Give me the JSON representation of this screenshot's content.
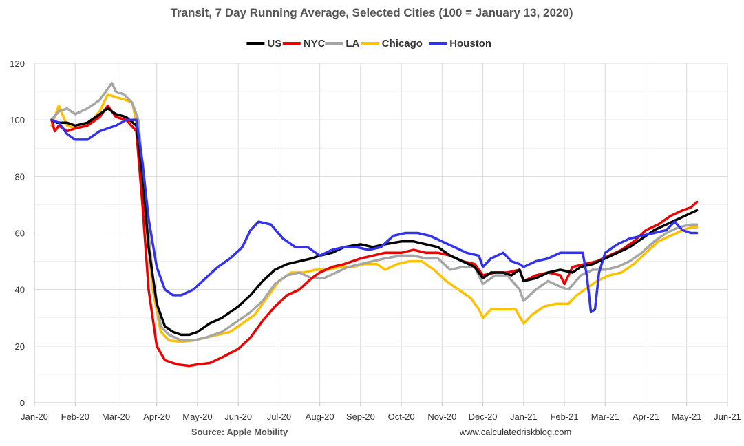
{
  "chart_data": {
    "type": "line",
    "title": "Transit, 7 Day Running Average, Selected Cities (100 = January 13, 2020)",
    "source": "Source: Apple Mobility",
    "website": "www.calculatedriskblog.com",
    "ylim": [
      0,
      120
    ],
    "yticks": [
      0,
      20,
      40,
      60,
      80,
      100,
      120
    ],
    "xlim": [
      0,
      17
    ],
    "xticks": [
      "Jan-20",
      "Feb-20",
      "Mar-20",
      "Apr-20",
      "May-20",
      "Jun-20",
      "Jul-20",
      "Aug-20",
      "Sep-20",
      "Oct-20",
      "Nov-20",
      "Dec-20",
      "Jan-21",
      "Feb-21",
      "Mar-21",
      "Apr-21",
      "May-21",
      "Jun-21"
    ],
    "x_unit": "months since Jan-20",
    "grid": true,
    "legend_position": "top",
    "series": [
      {
        "name": "US",
        "color": "#000000",
        "points": [
          [
            0.42,
            100
          ],
          [
            0.55,
            99
          ],
          [
            0.8,
            99
          ],
          [
            1.0,
            98
          ],
          [
            1.3,
            99
          ],
          [
            1.6,
            102
          ],
          [
            1.8,
            104
          ],
          [
            2.0,
            102
          ],
          [
            2.25,
            101
          ],
          [
            2.5,
            98
          ],
          [
            2.65,
            80
          ],
          [
            2.8,
            55
          ],
          [
            3.0,
            35
          ],
          [
            3.2,
            27
          ],
          [
            3.4,
            25
          ],
          [
            3.6,
            24
          ],
          [
            3.8,
            24
          ],
          [
            4.0,
            25
          ],
          [
            4.3,
            28
          ],
          [
            4.6,
            30
          ],
          [
            5.0,
            34
          ],
          [
            5.3,
            38
          ],
          [
            5.6,
            43
          ],
          [
            5.9,
            47
          ],
          [
            6.2,
            49
          ],
          [
            6.5,
            50
          ],
          [
            6.8,
            51
          ],
          [
            7.0,
            52
          ],
          [
            7.3,
            53
          ],
          [
            7.6,
            55
          ],
          [
            8.0,
            56
          ],
          [
            8.3,
            55
          ],
          [
            8.6,
            56
          ],
          [
            9.0,
            57
          ],
          [
            9.3,
            57
          ],
          [
            9.6,
            56
          ],
          [
            9.9,
            55
          ],
          [
            10.2,
            52
          ],
          [
            10.5,
            50
          ],
          [
            10.8,
            48
          ],
          [
            11.0,
            44
          ],
          [
            11.2,
            46
          ],
          [
            11.5,
            46
          ],
          [
            11.7,
            45
          ],
          [
            11.9,
            47
          ],
          [
            12.0,
            43
          ],
          [
            12.3,
            44
          ],
          [
            12.6,
            46
          ],
          [
            12.9,
            47
          ],
          [
            13.2,
            46
          ],
          [
            13.4,
            48
          ],
          [
            13.7,
            49
          ],
          [
            14.0,
            51
          ],
          [
            14.3,
            53
          ],
          [
            14.6,
            55
          ],
          [
            14.9,
            58
          ],
          [
            15.2,
            61
          ],
          [
            15.5,
            63
          ],
          [
            15.8,
            65
          ],
          [
            16.1,
            67
          ],
          [
            16.25,
            68
          ]
        ]
      },
      {
        "name": "NYC",
        "color": "#ee0000",
        "points": [
          [
            0.42,
            100
          ],
          [
            0.5,
            96
          ],
          [
            0.6,
            98
          ],
          [
            0.8,
            96
          ],
          [
            1.0,
            97
          ],
          [
            1.3,
            98
          ],
          [
            1.6,
            101
          ],
          [
            1.8,
            105
          ],
          [
            2.0,
            101
          ],
          [
            2.25,
            100
          ],
          [
            2.5,
            96
          ],
          [
            2.65,
            70
          ],
          [
            2.8,
            40
          ],
          [
            3.0,
            20
          ],
          [
            3.2,
            15
          ],
          [
            3.5,
            13.5
          ],
          [
            3.8,
            13
          ],
          [
            4.0,
            13.5
          ],
          [
            4.3,
            14
          ],
          [
            4.6,
            16
          ],
          [
            5.0,
            19
          ],
          [
            5.3,
            23
          ],
          [
            5.6,
            29
          ],
          [
            5.9,
            34
          ],
          [
            6.2,
            38
          ],
          [
            6.5,
            40
          ],
          [
            6.8,
            44
          ],
          [
            7.0,
            46
          ],
          [
            7.3,
            48
          ],
          [
            7.6,
            49
          ],
          [
            8.0,
            51
          ],
          [
            8.3,
            52
          ],
          [
            8.6,
            53
          ],
          [
            9.0,
            53
          ],
          [
            9.3,
            54
          ],
          [
            9.6,
            53
          ],
          [
            9.9,
            53
          ],
          [
            10.2,
            52
          ],
          [
            10.5,
            50
          ],
          [
            10.8,
            49
          ],
          [
            11.0,
            45
          ],
          [
            11.3,
            46
          ],
          [
            11.6,
            46
          ],
          [
            11.9,
            47
          ],
          [
            12.0,
            43
          ],
          [
            12.3,
            45
          ],
          [
            12.6,
            46
          ],
          [
            12.9,
            45
          ],
          [
            13.0,
            42
          ],
          [
            13.2,
            48
          ],
          [
            13.5,
            49
          ],
          [
            13.8,
            50
          ],
          [
            14.1,
            52
          ],
          [
            14.4,
            54
          ],
          [
            14.7,
            57
          ],
          [
            15.0,
            61
          ],
          [
            15.3,
            63
          ],
          [
            15.6,
            66
          ],
          [
            15.9,
            68
          ],
          [
            16.1,
            69
          ],
          [
            16.25,
            71
          ]
        ]
      },
      {
        "name": "LA",
        "color": "#a6a6a6",
        "points": [
          [
            0.42,
            100
          ],
          [
            0.6,
            103
          ],
          [
            0.8,
            104
          ],
          [
            1.0,
            102
          ],
          [
            1.3,
            104
          ],
          [
            1.6,
            107
          ],
          [
            1.8,
            111
          ],
          [
            1.9,
            113
          ],
          [
            2.0,
            110
          ],
          [
            2.2,
            109
          ],
          [
            2.4,
            106
          ],
          [
            2.55,
            100
          ],
          [
            2.7,
            75
          ],
          [
            2.9,
            45
          ],
          [
            3.1,
            27
          ],
          [
            3.3,
            24
          ],
          [
            3.6,
            22
          ],
          [
            3.9,
            22
          ],
          [
            4.2,
            23
          ],
          [
            4.6,
            25
          ],
          [
            5.0,
            29
          ],
          [
            5.3,
            32
          ],
          [
            5.6,
            36
          ],
          [
            5.9,
            42
          ],
          [
            6.2,
            45
          ],
          [
            6.5,
            46
          ],
          [
            6.8,
            44
          ],
          [
            7.1,
            44
          ],
          [
            7.4,
            46
          ],
          [
            7.7,
            48
          ],
          [
            8.0,
            49
          ],
          [
            8.3,
            50
          ],
          [
            8.6,
            51
          ],
          [
            9.0,
            52
          ],
          [
            9.3,
            52
          ],
          [
            9.6,
            51
          ],
          [
            9.9,
            51
          ],
          [
            10.2,
            47
          ],
          [
            10.5,
            48
          ],
          [
            10.8,
            48
          ],
          [
            11.0,
            42
          ],
          [
            11.3,
            45
          ],
          [
            11.6,
            45
          ],
          [
            11.9,
            40
          ],
          [
            12.0,
            36
          ],
          [
            12.3,
            40
          ],
          [
            12.6,
            43
          ],
          [
            12.9,
            41
          ],
          [
            13.1,
            40
          ],
          [
            13.4,
            45
          ],
          [
            13.7,
            47
          ],
          [
            14.0,
            47
          ],
          [
            14.3,
            48
          ],
          [
            14.6,
            50
          ],
          [
            14.9,
            53
          ],
          [
            15.2,
            57
          ],
          [
            15.5,
            60
          ],
          [
            15.8,
            62
          ],
          [
            16.1,
            63
          ],
          [
            16.25,
            63
          ]
        ]
      },
      {
        "name": "Chicago",
        "color": "#ffc000",
        "points": [
          [
            0.42,
            98
          ],
          [
            0.6,
            105
          ],
          [
            0.8,
            98
          ],
          [
            1.0,
            97
          ],
          [
            1.3,
            98
          ],
          [
            1.6,
            103
          ],
          [
            1.8,
            109
          ],
          [
            2.0,
            108
          ],
          [
            2.25,
            107
          ],
          [
            2.4,
            106
          ],
          [
            2.55,
            96
          ],
          [
            2.7,
            70
          ],
          [
            2.9,
            40
          ],
          [
            3.1,
            25
          ],
          [
            3.3,
            22
          ],
          [
            3.6,
            21.5
          ],
          [
            3.9,
            22
          ],
          [
            4.2,
            23
          ],
          [
            4.5,
            24
          ],
          [
            4.8,
            25
          ],
          [
            5.1,
            28
          ],
          [
            5.4,
            31
          ],
          [
            5.7,
            37
          ],
          [
            6.0,
            43
          ],
          [
            6.3,
            46
          ],
          [
            6.6,
            46
          ],
          [
            6.9,
            47
          ],
          [
            7.2,
            47
          ],
          [
            7.5,
            48
          ],
          [
            7.8,
            48
          ],
          [
            8.1,
            49
          ],
          [
            8.4,
            49
          ],
          [
            8.6,
            47
          ],
          [
            8.9,
            49
          ],
          [
            9.2,
            50
          ],
          [
            9.5,
            50
          ],
          [
            9.8,
            47
          ],
          [
            10.1,
            43
          ],
          [
            10.4,
            40
          ],
          [
            10.7,
            37
          ],
          [
            10.9,
            33
          ],
          [
            11.0,
            30
          ],
          [
            11.2,
            33
          ],
          [
            11.5,
            33
          ],
          [
            11.8,
            33
          ],
          [
            12.0,
            28
          ],
          [
            12.2,
            31
          ],
          [
            12.5,
            34
          ],
          [
            12.8,
            35
          ],
          [
            13.1,
            35
          ],
          [
            13.3,
            38
          ],
          [
            13.5,
            40
          ],
          [
            13.8,
            43
          ],
          [
            14.1,
            45
          ],
          [
            14.4,
            46
          ],
          [
            14.7,
            49
          ],
          [
            15.0,
            53
          ],
          [
            15.3,
            57
          ],
          [
            15.6,
            59
          ],
          [
            15.9,
            61
          ],
          [
            16.1,
            62
          ],
          [
            16.25,
            62
          ]
        ]
      },
      {
        "name": "Houston",
        "color": "#3333ee",
        "points": [
          [
            0.42,
            100
          ],
          [
            0.6,
            99
          ],
          [
            0.8,
            95
          ],
          [
            1.0,
            93
          ],
          [
            1.3,
            93
          ],
          [
            1.6,
            96
          ],
          [
            1.8,
            97
          ],
          [
            2.0,
            98
          ],
          [
            2.25,
            100
          ],
          [
            2.5,
            100
          ],
          [
            2.65,
            85
          ],
          [
            2.8,
            65
          ],
          [
            3.0,
            48
          ],
          [
            3.2,
            40
          ],
          [
            3.4,
            38
          ],
          [
            3.6,
            38
          ],
          [
            3.9,
            40
          ],
          [
            4.2,
            44
          ],
          [
            4.5,
            48
          ],
          [
            4.8,
            51
          ],
          [
            5.1,
            55
          ],
          [
            5.3,
            61
          ],
          [
            5.5,
            64
          ],
          [
            5.8,
            63
          ],
          [
            6.1,
            58
          ],
          [
            6.4,
            55
          ],
          [
            6.7,
            55
          ],
          [
            7.0,
            52
          ],
          [
            7.3,
            54
          ],
          [
            7.6,
            55
          ],
          [
            7.9,
            55
          ],
          [
            8.2,
            54
          ],
          [
            8.5,
            55
          ],
          [
            8.8,
            59
          ],
          [
            9.1,
            60
          ],
          [
            9.4,
            60
          ],
          [
            9.7,
            59
          ],
          [
            10.0,
            57
          ],
          [
            10.3,
            55
          ],
          [
            10.6,
            53
          ],
          [
            10.9,
            52
          ],
          [
            11.0,
            48
          ],
          [
            11.2,
            51
          ],
          [
            11.5,
            53
          ],
          [
            11.7,
            50
          ],
          [
            11.9,
            49
          ],
          [
            12.0,
            48
          ],
          [
            12.3,
            50
          ],
          [
            12.6,
            51
          ],
          [
            12.9,
            53
          ],
          [
            13.2,
            53
          ],
          [
            13.45,
            53
          ],
          [
            13.55,
            45
          ],
          [
            13.65,
            32
          ],
          [
            13.75,
            33
          ],
          [
            13.85,
            46
          ],
          [
            14.0,
            53
          ],
          [
            14.3,
            56
          ],
          [
            14.6,
            58
          ],
          [
            14.9,
            59
          ],
          [
            15.2,
            60
          ],
          [
            15.5,
            61
          ],
          [
            15.7,
            64
          ],
          [
            15.9,
            61
          ],
          [
            16.1,
            60
          ],
          [
            16.25,
            60
          ]
        ]
      }
    ]
  }
}
